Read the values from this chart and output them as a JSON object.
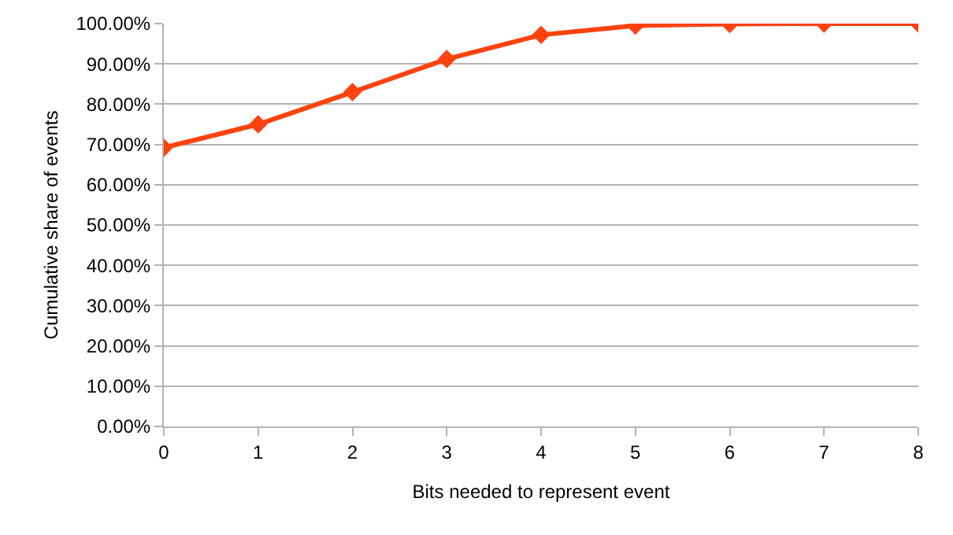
{
  "chart_data": {
    "type": "line",
    "xlabel": "Bits needed to represent event",
    "ylabel": "Cumulative share of events",
    "x": [
      0,
      1,
      2,
      3,
      4,
      5,
      6,
      7,
      8
    ],
    "series": [
      {
        "color": "#ff420e",
        "values": [
          69.2,
          75,
          83,
          91.2,
          97.2,
          99.5,
          99.9,
          100,
          100
        ]
      }
    ],
    "xlim": [
      0,
      8
    ],
    "xticks": [
      0,
      1,
      2,
      3,
      4,
      5,
      6,
      7,
      8
    ],
    "ylim": [
      0,
      100
    ],
    "yticks": [
      {
        "value": 0,
        "label": "0.00%"
      },
      {
        "value": 10,
        "label": "10.00%"
      },
      {
        "value": 20,
        "label": "20.00%"
      },
      {
        "value": 30,
        "label": "30.00%"
      },
      {
        "value": 40,
        "label": "40.00%"
      },
      {
        "value": 50,
        "label": "50.00%"
      },
      {
        "value": 60,
        "label": "60.00%"
      },
      {
        "value": 70,
        "label": "70.00%"
      },
      {
        "value": 80,
        "label": "80.00%"
      },
      {
        "value": 90,
        "label": "90.00%"
      },
      {
        "value": 100,
        "label": "100.00%"
      }
    ],
    "grid": "y",
    "legend": false,
    "marker": "diamond",
    "line_style": "solid"
  }
}
